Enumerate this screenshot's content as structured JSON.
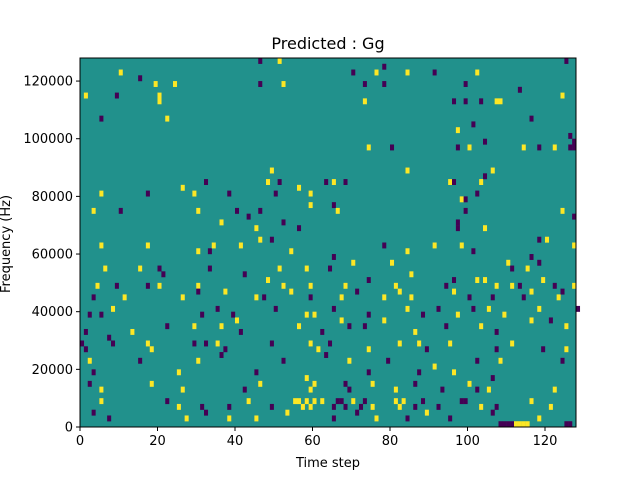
{
  "colors": {
    "background": "#21918c",
    "low": "#440154",
    "high": "#fde725",
    "axis": "#000000"
  },
  "chart_data": {
    "type": "heatmap",
    "title": "Predicted : Gg",
    "xlabel": "Time step",
    "ylabel": "Frequency (Hz)",
    "xlim": [
      0,
      128
    ],
    "ylim": [
      0,
      128000
    ],
    "xticks": [
      0,
      20,
      40,
      60,
      80,
      100,
      120
    ],
    "yticks": [
      0,
      20000,
      40000,
      60000,
      80000,
      100000,
      120000
    ],
    "xtick_labels": [
      "0",
      "20",
      "40",
      "60",
      "80",
      "100",
      "120"
    ],
    "ytick_labels": [
      "0",
      "20000",
      "40000",
      "60000",
      "80000",
      "100000",
      "120000"
    ],
    "grid": false,
    "default_value": 0,
    "cell_height": 2000,
    "cells": [
      [
        10,
        122000,
        1
      ],
      [
        15,
        120000,
        -1
      ],
      [
        19,
        118000,
        1
      ],
      [
        24,
        118000,
        1
      ],
      [
        1,
        114000,
        1
      ],
      [
        9,
        114000,
        -1
      ],
      [
        20,
        114000,
        1
      ],
      [
        20,
        112000,
        1
      ],
      [
        5,
        106000,
        -1
      ],
      [
        22,
        106000,
        1
      ],
      [
        46,
        126000,
        -1
      ],
      [
        51,
        126000,
        1
      ],
      [
        70,
        122000,
        -1
      ],
      [
        76,
        122000,
        1
      ],
      [
        78,
        124000,
        -1
      ],
      [
        84,
        122000,
        1
      ],
      [
        91,
        122000,
        -1
      ],
      [
        46,
        118000,
        -1
      ],
      [
        52,
        118000,
        1
      ],
      [
        73,
        118000,
        -1
      ],
      [
        78,
        118000,
        -1
      ],
      [
        99,
        118000,
        -1
      ],
      [
        102,
        122000,
        1
      ],
      [
        113,
        116000,
        -1
      ],
      [
        124,
        114000,
        1
      ],
      [
        73,
        112000,
        1
      ],
      [
        96,
        112000,
        -1
      ],
      [
        99,
        112000,
        -1
      ],
      [
        103,
        112000,
        -1
      ],
      [
        107,
        112000,
        1
      ],
      [
        108,
        112000,
        1
      ],
      [
        116,
        106000,
        -1
      ],
      [
        125,
        126000,
        -1
      ],
      [
        97,
        102000,
        1
      ],
      [
        101,
        104000,
        -1
      ],
      [
        74,
        96000,
        1
      ],
      [
        80,
        96000,
        -1
      ],
      [
        100,
        96000,
        1
      ],
      [
        104,
        98000,
        -1
      ],
      [
        114,
        96000,
        1
      ],
      [
        118,
        96000,
        -1
      ],
      [
        122,
        96000,
        1
      ],
      [
        126,
        96000,
        -1
      ],
      [
        127,
        96000,
        -1
      ],
      [
        126,
        100000,
        -1
      ],
      [
        127,
        98000,
        -1
      ],
      [
        97,
        96000,
        -1
      ],
      [
        26,
        82000,
        1
      ],
      [
        32,
        84000,
        -1
      ],
      [
        48,
        84000,
        1
      ],
      [
        49,
        88000,
        1
      ],
      [
        51,
        84000,
        -1
      ],
      [
        56,
        82000,
        1
      ],
      [
        63,
        84000,
        -1
      ],
      [
        65,
        84000,
        1
      ],
      [
        68,
        84000,
        -1
      ],
      [
        84,
        88000,
        1
      ],
      [
        95,
        84000,
        1
      ],
      [
        96,
        84000,
        -1
      ],
      [
        103,
        84000,
        1
      ],
      [
        104,
        86000,
        -1
      ],
      [
        106,
        88000,
        1
      ],
      [
        5,
        80000,
        1
      ],
      [
        17,
        80000,
        -1
      ],
      [
        29,
        80000,
        1
      ],
      [
        38,
        80000,
        -1
      ],
      [
        50,
        80000,
        -1
      ],
      [
        59,
        80000,
        1
      ],
      [
        65,
        76000,
        -1
      ],
      [
        98,
        78000,
        1
      ],
      [
        99,
        78000,
        -1
      ],
      [
        102,
        80000,
        -1
      ],
      [
        3,
        74000,
        1
      ],
      [
        10,
        74000,
        -1
      ],
      [
        30,
        74000,
        1
      ],
      [
        40,
        74000,
        -1
      ],
      [
        46,
        74000,
        -1
      ],
      [
        59,
        76000,
        1
      ],
      [
        66,
        74000,
        1
      ],
      [
        99,
        74000,
        -1
      ],
      [
        124,
        74000,
        1
      ],
      [
        127,
        72000,
        -1
      ],
      [
        36,
        70000,
        1
      ],
      [
        43,
        72000,
        -1
      ],
      [
        45,
        68000,
        1
      ],
      [
        52,
        70000,
        -1
      ],
      [
        56,
        68000,
        -1
      ],
      [
        97,
        70000,
        -1
      ],
      [
        97,
        68000,
        -1
      ],
      [
        104,
        68000,
        1
      ],
      [
        5,
        62000,
        1
      ],
      [
        17,
        62000,
        1
      ],
      [
        30,
        60000,
        1
      ],
      [
        33,
        60000,
        -1
      ],
      [
        34,
        62000,
        1
      ],
      [
        41,
        62000,
        1
      ],
      [
        46,
        64000,
        1
      ],
      [
        49,
        64000,
        -1
      ],
      [
        54,
        60000,
        1
      ],
      [
        78,
        62000,
        -1
      ],
      [
        84,
        60000,
        1
      ],
      [
        91,
        62000,
        1
      ],
      [
        98,
        62000,
        1
      ],
      [
        101,
        60000,
        -1
      ],
      [
        118,
        64000,
        -1
      ],
      [
        120,
        64000,
        1
      ],
      [
        127,
        62000,
        1
      ],
      [
        6,
        54000,
        1
      ],
      [
        15,
        54000,
        1
      ],
      [
        20,
        54000,
        -1
      ],
      [
        21,
        52000,
        -1
      ],
      [
        33,
        54000,
        -1
      ],
      [
        42,
        52000,
        -1
      ],
      [
        51,
        54000,
        1
      ],
      [
        58,
        54000,
        1
      ],
      [
        64,
        54000,
        -1
      ],
      [
        65,
        58000,
        -1
      ],
      [
        70,
        56000,
        1
      ],
      [
        80,
        56000,
        1
      ],
      [
        85,
        52000,
        1
      ],
      [
        96,
        50000,
        -1
      ],
      [
        102,
        50000,
        1
      ],
      [
        110,
        56000,
        1
      ],
      [
        111,
        54000,
        -1
      ],
      [
        115,
        54000,
        1
      ],
      [
        116,
        58000,
        -1
      ],
      [
        118,
        56000,
        -1
      ],
      [
        4,
        48000,
        1
      ],
      [
        9,
        48000,
        -1
      ],
      [
        17,
        48000,
        -1
      ],
      [
        20,
        48000,
        1
      ],
      [
        30,
        48000,
        1
      ],
      [
        48,
        50000,
        1
      ],
      [
        52,
        48000,
        1
      ],
      [
        59,
        48000,
        1
      ],
      [
        68,
        48000,
        1
      ],
      [
        74,
        50000,
        -1
      ],
      [
        81,
        48000,
        1
      ],
      [
        82,
        46000,
        1
      ],
      [
        94,
        48000,
        -1
      ],
      [
        104,
        50000,
        1
      ],
      [
        107,
        48000,
        1
      ],
      [
        111,
        48000,
        1
      ],
      [
        113,
        48000,
        -1
      ],
      [
        119,
        50000,
        1
      ],
      [
        122,
        48000,
        -1
      ],
      [
        127,
        48000,
        1
      ],
      [
        3,
        44000,
        -1
      ],
      [
        11,
        44000,
        1
      ],
      [
        26,
        44000,
        1
      ],
      [
        30,
        46000,
        -1
      ],
      [
        37,
        46000,
        1
      ],
      [
        45,
        44000,
        1
      ],
      [
        47,
        44000,
        -1
      ],
      [
        54,
        46000,
        1
      ],
      [
        59,
        44000,
        -1
      ],
      [
        67,
        44000,
        1
      ],
      [
        71,
        46000,
        -1
      ],
      [
        78,
        44000,
        1
      ],
      [
        85,
        44000,
        1
      ],
      [
        96,
        46000,
        1
      ],
      [
        100,
        44000,
        -1
      ],
      [
        106,
        44000,
        -1
      ],
      [
        114,
        44000,
        -1
      ],
      [
        116,
        46000,
        1
      ],
      [
        123,
        44000,
        1
      ],
      [
        124,
        46000,
        -1
      ],
      [
        2,
        38000,
        -1
      ],
      [
        5,
        38000,
        -1
      ],
      [
        8,
        40000,
        1
      ],
      [
        31,
        38000,
        -1
      ],
      [
        35,
        40000,
        -1
      ],
      [
        39,
        38000,
        -1
      ],
      [
        50,
        40000,
        -1
      ],
      [
        58,
        38000,
        1
      ],
      [
        60,
        38000,
        1
      ],
      [
        65,
        40000,
        -1
      ],
      [
        74,
        38000,
        -1
      ],
      [
        84,
        40000,
        1
      ],
      [
        88,
        38000,
        -1
      ],
      [
        92,
        40000,
        -1
      ],
      [
        97,
        38000,
        1
      ],
      [
        101,
        40000,
        -1
      ],
      [
        105,
        40000,
        1
      ],
      [
        109,
        38000,
        1
      ],
      [
        118,
        40000,
        1
      ],
      [
        128,
        40000,
        -1
      ],
      [
        1,
        32000,
        -1
      ],
      [
        7,
        30000,
        -1
      ],
      [
        13,
        32000,
        1
      ],
      [
        22,
        34000,
        -1
      ],
      [
        29,
        34000,
        1
      ],
      [
        36,
        34000,
        1
      ],
      [
        40,
        36000,
        1
      ],
      [
        41,
        32000,
        -1
      ],
      [
        56,
        34000,
        1
      ],
      [
        62,
        32000,
        -1
      ],
      [
        67,
        36000,
        1
      ],
      [
        69,
        34000,
        -1
      ],
      [
        73,
        34000,
        -1
      ],
      [
        78,
        36000,
        1
      ],
      [
        86,
        32000,
        1
      ],
      [
        94,
        34000,
        -1
      ],
      [
        103,
        34000,
        1
      ],
      [
        107,
        32000,
        -1
      ],
      [
        116,
        36000,
        1
      ],
      [
        121,
        36000,
        -1
      ],
      [
        125,
        34000,
        1
      ],
      [
        0,
        28000,
        -1
      ],
      [
        1,
        26000,
        -1
      ],
      [
        8,
        28000,
        -1
      ],
      [
        17,
        28000,
        1
      ],
      [
        18,
        26000,
        1
      ],
      [
        29,
        28000,
        -1
      ],
      [
        32,
        28000,
        -1
      ],
      [
        35,
        28000,
        1
      ],
      [
        37,
        26000,
        -1
      ],
      [
        49,
        28000,
        -1
      ],
      [
        59,
        28000,
        1
      ],
      [
        61,
        26000,
        1
      ],
      [
        64,
        28000,
        -1
      ],
      [
        74,
        26000,
        1
      ],
      [
        82,
        28000,
        1
      ],
      [
        87,
        28000,
        1
      ],
      [
        89,
        26000,
        -1
      ],
      [
        95,
        28000,
        1
      ],
      [
        107,
        26000,
        -1
      ],
      [
        111,
        28000,
        1
      ],
      [
        119,
        26000,
        -1
      ],
      [
        125,
        26000,
        1
      ],
      [
        2,
        22000,
        1
      ],
      [
        15,
        22000,
        -1
      ],
      [
        30,
        22000,
        1
      ],
      [
        36,
        24000,
        -1
      ],
      [
        52,
        22000,
        -1
      ],
      [
        63,
        24000,
        -1
      ],
      [
        69,
        22000,
        1
      ],
      [
        79,
        22000,
        -1
      ],
      [
        91,
        20000,
        1
      ],
      [
        102,
        22000,
        -1
      ],
      [
        108,
        22000,
        1
      ],
      [
        124,
        22000,
        -1
      ],
      [
        3,
        18000,
        -1
      ],
      [
        25,
        18000,
        1
      ],
      [
        45,
        18000,
        -1
      ],
      [
        58,
        16000,
        1
      ],
      [
        74,
        18000,
        -1
      ],
      [
        87,
        18000,
        -1
      ],
      [
        96,
        18000,
        1
      ],
      [
        106,
        16000,
        -1
      ],
      [
        2,
        14000,
        -1
      ],
      [
        5,
        12000,
        1
      ],
      [
        18,
        14000,
        1
      ],
      [
        26,
        12000,
        1
      ],
      [
        42,
        12000,
        -1
      ],
      [
        46,
        14000,
        1
      ],
      [
        59,
        12000,
        1
      ],
      [
        60,
        14000,
        1
      ],
      [
        68,
        14000,
        -1
      ],
      [
        69,
        12000,
        -1
      ],
      [
        75,
        14000,
        1
      ],
      [
        81,
        12000,
        1
      ],
      [
        86,
        14000,
        -1
      ],
      [
        93,
        12000,
        -1
      ],
      [
        100,
        14000,
        1
      ],
      [
        102,
        12000,
        -1
      ],
      [
        105,
        12000,
        1
      ],
      [
        122,
        12000,
        1
      ],
      [
        5,
        8000,
        1
      ],
      [
        25,
        6000,
        1
      ],
      [
        31,
        6000,
        -1
      ],
      [
        38,
        6000,
        -1
      ],
      [
        43,
        8000,
        1
      ],
      [
        49,
        6000,
        -1
      ],
      [
        55,
        8000,
        1
      ],
      [
        56,
        8000,
        1
      ],
      [
        57,
        6000,
        1
      ],
      [
        58,
        8000,
        1
      ],
      [
        59,
        6000,
        1
      ],
      [
        60,
        8000,
        1
      ],
      [
        62,
        8000,
        1
      ],
      [
        65,
        6000,
        -1
      ],
      [
        66,
        8000,
        -1
      ],
      [
        67,
        8000,
        -1
      ],
      [
        68,
        6000,
        -1
      ],
      [
        70,
        8000,
        1
      ],
      [
        72,
        6000,
        -1
      ],
      [
        73,
        8000,
        -1
      ],
      [
        75,
        6000,
        1
      ],
      [
        81,
        8000,
        1
      ],
      [
        82,
        6000,
        1
      ],
      [
        83,
        8000,
        1
      ],
      [
        86,
        6000,
        -1
      ],
      [
        88,
        8000,
        -1
      ],
      [
        92,
        6000,
        -1
      ],
      [
        98,
        8000,
        -1
      ],
      [
        99,
        8000,
        -1
      ],
      [
        103,
        6000,
        1
      ],
      [
        107,
        6000,
        -1
      ],
      [
        116,
        8000,
        1
      ],
      [
        121,
        6000,
        1
      ],
      [
        22,
        8000,
        -1
      ],
      [
        3,
        4000,
        -1
      ],
      [
        7,
        2000,
        -1
      ],
      [
        27,
        2000,
        1
      ],
      [
        32,
        4000,
        -1
      ],
      [
        38,
        2000,
        1
      ],
      [
        45,
        2000,
        1
      ],
      [
        53,
        4000,
        1
      ],
      [
        65,
        2000,
        -1
      ],
      [
        71,
        4000,
        -1
      ],
      [
        76,
        2000,
        1
      ],
      [
        84,
        2000,
        -1
      ],
      [
        89,
        4000,
        1
      ],
      [
        95,
        2000,
        -1
      ],
      [
        106,
        4000,
        -1
      ],
      [
        108,
        0,
        -1
      ],
      [
        109,
        0,
        -1
      ],
      [
        110,
        0,
        -1
      ],
      [
        111,
        0,
        -1
      ],
      [
        112,
        0,
        1
      ],
      [
        113,
        0,
        1
      ],
      [
        114,
        0,
        1
      ],
      [
        115,
        0,
        1
      ],
      [
        125,
        0,
        -1
      ],
      [
        126,
        0,
        -1
      ],
      [
        118,
        2000,
        1
      ]
    ]
  }
}
